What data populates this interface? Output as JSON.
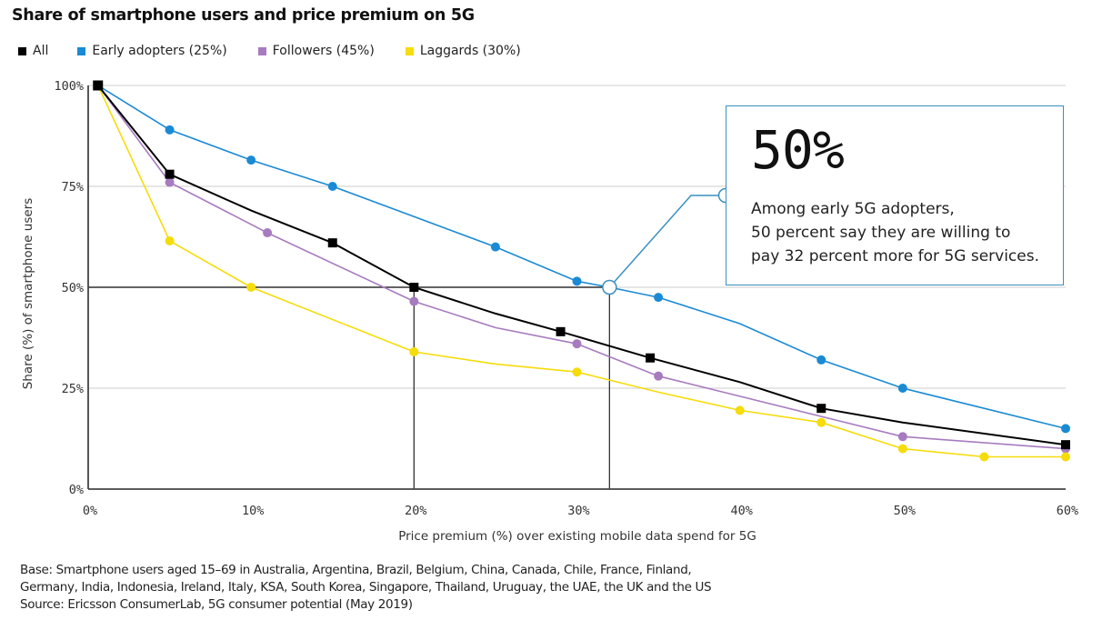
{
  "title": "Share of smartphone users and price premium on 5G",
  "legend": [
    {
      "label": "All",
      "color": "#000000",
      "marker": "square"
    },
    {
      "label": "Early adopters (25%)",
      "color": "#1a8ad4",
      "marker": "circle"
    },
    {
      "label": "Followers (45%)",
      "color": "#a77bbf",
      "marker": "circle"
    },
    {
      "label": "Laggards (30%)",
      "color": "#f5dc0a",
      "marker": "circle"
    }
  ],
  "callout": {
    "big_value": "50%",
    "lines": [
      "Among early 5G adopters,",
      "50 percent say they are willing to",
      "pay 32 percent more for 5G services."
    ],
    "border_color": "#3a8fbf"
  },
  "footer": {
    "base_line1": "Base: Smartphone users aged 15–69 in Australia, Argentina, Brazil, Belgium, China, Canada, Chile, France, Finland,",
    "base_line2": "Germany, India, Indonesia, Ireland, Italy, KSA, South Korea, Singapore, Thailand, Uruguay, the UAE, the UK and the US",
    "source": "Source: Ericsson ConsumerLab, 5G consumer potential (May 2019)"
  },
  "chart_data": {
    "type": "line",
    "title": "Share of smartphone users and price premium on 5G",
    "xlabel": "Price premium (%) over existing mobile data spend for 5G",
    "ylabel": "Share (%) of smartphone users",
    "xlim": [
      0,
      60
    ],
    "ylim": [
      0,
      100
    ],
    "x_ticks": [
      "0%",
      "10%",
      "20%",
      "30%",
      "40%",
      "50%",
      "60%"
    ],
    "x_tick_values": [
      0,
      10,
      20,
      30,
      40,
      50,
      60
    ],
    "y_ticks": [
      "0%",
      "25%",
      "50%",
      "75%",
      "100%"
    ],
    "y_tick_values": [
      0,
      25,
      50,
      75,
      100
    ],
    "grid": "horizontal",
    "legend_position": "top-left",
    "series": [
      {
        "name": "Early adopters (25%)",
        "color": "#1a8ad4",
        "marker": "circle",
        "points": [
          [
            0.6,
            100
          ],
          [
            5,
            89
          ],
          [
            10,
            81.5
          ],
          [
            15,
            75
          ],
          [
            25,
            60
          ],
          [
            30,
            51.5
          ],
          [
            35,
            47.5
          ],
          [
            45,
            32
          ],
          [
            50,
            25
          ],
          [
            60,
            15
          ]
        ],
        "line_only": [
          [
            20,
            67.5
          ],
          [
            40,
            41
          ]
        ]
      },
      {
        "name": "Followers (45%)",
        "color": "#a77bbf",
        "marker": "circle",
        "points": [
          [
            0.6,
            100
          ],
          [
            5,
            76
          ],
          [
            11,
            63.5
          ],
          [
            20,
            46.5
          ],
          [
            30,
            36
          ],
          [
            35,
            28
          ],
          [
            50,
            13
          ],
          [
            60,
            10
          ]
        ],
        "line_only": [
          [
            25,
            40
          ],
          [
            40,
            23
          ],
          [
            45,
            18
          ]
        ]
      },
      {
        "name": "Laggards (30%)",
        "color": "#f5dc0a",
        "marker": "circle",
        "points": [
          [
            0.6,
            100
          ],
          [
            5,
            61.5
          ],
          [
            10,
            50
          ],
          [
            20,
            34
          ],
          [
            30,
            29
          ],
          [
            40,
            19.5
          ],
          [
            45,
            16.5
          ],
          [
            50,
            10
          ],
          [
            55,
            8
          ],
          [
            60,
            8
          ]
        ],
        "line_only": [
          [
            25,
            31
          ],
          [
            35,
            24
          ]
        ]
      },
      {
        "name": "All",
        "color": "#000000",
        "marker": "square",
        "points": [
          [
            0.6,
            100
          ],
          [
            5,
            78
          ],
          [
            15,
            61
          ],
          [
            20,
            50
          ],
          [
            29,
            39
          ],
          [
            34.5,
            32.5
          ],
          [
            45,
            20
          ],
          [
            60,
            11
          ]
        ],
        "line_only": [
          [
            10,
            69
          ],
          [
            25,
            43.5
          ],
          [
            40,
            26.5
          ],
          [
            50,
            16.5
          ]
        ]
      }
    ],
    "annotations": [
      {
        "type": "reference-lines",
        "x": 20,
        "y": 50,
        "series": "All"
      },
      {
        "type": "reference-lines",
        "x": 32,
        "y": 50,
        "series": "Early adopters (25%)",
        "callout": "50%"
      }
    ]
  }
}
